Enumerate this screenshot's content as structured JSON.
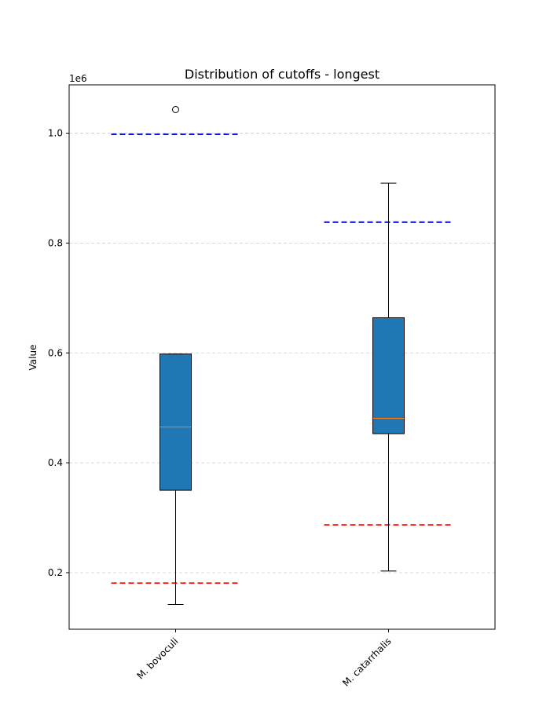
{
  "chart_data": {
    "type": "box",
    "title": "Distribution of cutoffs - longest",
    "xlabel": "",
    "ylabel": "Value",
    "offset_text": "1e6",
    "ylim": [
      0.097,
      1.088
    ],
    "yticks": [
      0.2,
      0.4,
      0.6,
      0.8,
      1.0
    ],
    "ytick_labels": [
      "0.2",
      "0.4",
      "0.6",
      "0.8",
      "1.0"
    ],
    "y_scale_factor": 1000000,
    "grid": "horizontal-dashed",
    "categories": [
      "M. bovoculi",
      "M. catarrhalis"
    ],
    "boxes": [
      {
        "category": "M. bovoculi",
        "whisker_low": 0.142,
        "q1": 0.35,
        "median": 0.465,
        "q3": 0.598,
        "whisker_high": 0.598,
        "outliers": [
          1.043
        ],
        "upper_threshold": 0.998,
        "lower_threshold": 0.181
      },
      {
        "category": "M. catarrhalis",
        "whisker_low": 0.203,
        "q1": 0.453,
        "median": 0.481,
        "q3": 0.664,
        "whisker_high": 0.909,
        "outliers": [],
        "upper_threshold": 0.838,
        "lower_threshold": 0.287
      }
    ],
    "colors": {
      "box_fill": "#1f77b4",
      "median": "#ff7f0e",
      "upper_threshold": "#0000cc",
      "lower_threshold": "#ff0000",
      "grid": "#cccccc"
    }
  }
}
